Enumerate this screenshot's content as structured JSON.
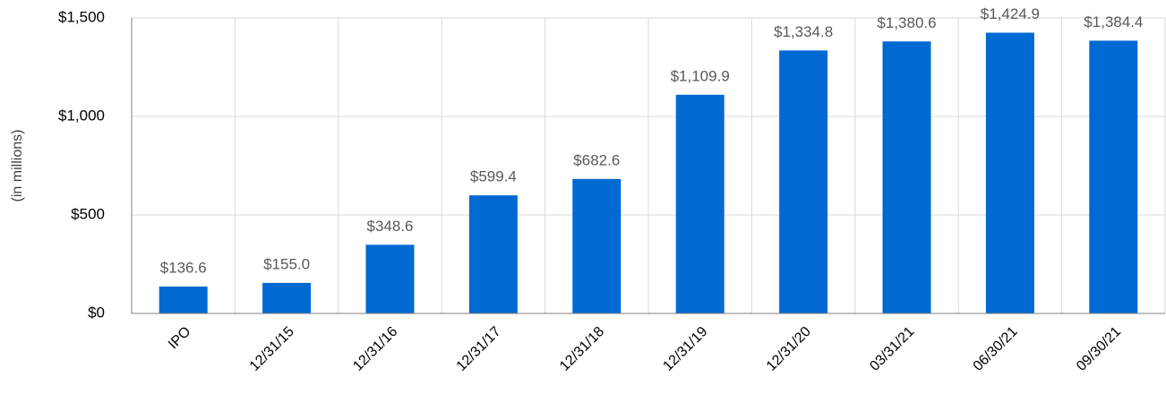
{
  "chart_data": {
    "type": "bar",
    "y_axis_label": "(in millions)",
    "categories": [
      "IPO",
      "12/31/15",
      "12/31/16",
      "12/31/17",
      "12/31/18",
      "12/31/19",
      "12/31/20",
      "03/31/21",
      "06/30/21",
      "09/30/21"
    ],
    "values": [
      136.6,
      155.0,
      348.6,
      599.4,
      682.6,
      1109.9,
      1334.8,
      1380.6,
      1424.9,
      1384.4
    ],
    "value_labels": [
      "$136.6",
      "$155.0",
      "$348.6",
      "$599.4",
      "$682.6",
      "$1,109.9",
      "$1,334.8",
      "$1,380.6",
      "$1,424.9",
      "$1,384.4"
    ],
    "color": "#0069d2",
    "ylim": [
      0,
      1500
    ],
    "yticks": [
      {
        "value": 0,
        "label": "$0"
      },
      {
        "value": 500,
        "label": "$500"
      },
      {
        "value": 1000,
        "label": "$1,000"
      },
      {
        "value": 1500,
        "label": "$1,500"
      }
    ],
    "grid": true
  }
}
